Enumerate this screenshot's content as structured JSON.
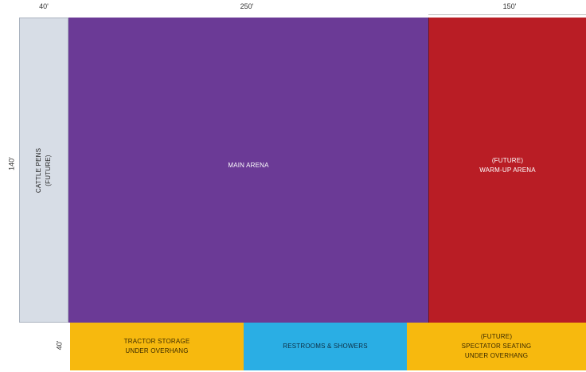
{
  "dimensions": {
    "top_left": "40'",
    "top_middle": "250'",
    "top_right": "150'",
    "left_side": "140'",
    "bottom_left": "40'"
  },
  "zones": {
    "cattle_pens": {
      "line1": "CATTLE PENS",
      "line2": "(FUTURE)",
      "color": "#d7dde6"
    },
    "main_arena": {
      "line1": "MAIN ARENA",
      "color": "#6b3a96"
    },
    "warmup_arena": {
      "line1": "(FUTURE)",
      "line2": "WARM-UP ARENA",
      "color": "#b91d25"
    },
    "tractor_storage": {
      "line1": "TRACTOR STORAGE",
      "line2": "UNDER OVERHANG",
      "color": "#f7b90e"
    },
    "restrooms": {
      "line1": "RESTROOMS & SHOWERS",
      "color": "#2aaee4"
    },
    "spectator": {
      "line1": "(FUTURE)",
      "line2": "SPECTATOR SEATING",
      "line3": "UNDER OVERHANG",
      "color": "#f7b90e"
    }
  }
}
